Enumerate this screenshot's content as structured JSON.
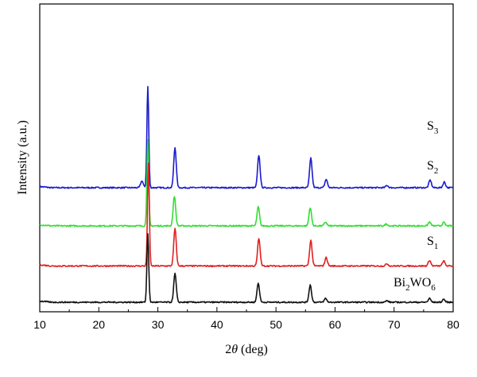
{
  "chart_data": {
    "type": "line",
    "title": "",
    "xlabel": "2θ (deg)",
    "xlabel_theta": "θ",
    "xlabel_prefix": "2",
    "xlabel_suffix": " (deg)",
    "ylabel": "Intensity (a.u.)",
    "xlim": [
      10,
      80
    ],
    "x_ticks": [
      "10",
      "20",
      "30",
      "40",
      "50",
      "60",
      "70",
      "80"
    ],
    "grid": false,
    "baseline_scale": "stacked offsets (arbitrary units)",
    "series": [
      {
        "name": "S3",
        "label_main": "S",
        "label_sub": "3",
        "color": "#1a1acc",
        "baseline": 3.0,
        "peaks": [
          [
            27.3,
            0.18
          ],
          [
            28.3,
            2.65
          ],
          [
            32.9,
            1.05
          ],
          [
            47.1,
            0.85
          ],
          [
            55.9,
            0.77
          ],
          [
            58.5,
            0.22
          ],
          [
            68.8,
            0.06
          ],
          [
            76.1,
            0.2
          ],
          [
            78.5,
            0.15
          ]
        ]
      },
      {
        "name": "S2",
        "label_main": "S",
        "label_sub": "2",
        "color": "#33dd33",
        "baseline": 2.0,
        "peaks": [
          [
            28.3,
            2.25
          ],
          [
            32.8,
            0.78
          ],
          [
            47.0,
            0.5
          ],
          [
            55.8,
            0.48
          ],
          [
            58.4,
            0.1
          ],
          [
            68.7,
            0.05
          ],
          [
            76.0,
            0.1
          ],
          [
            78.4,
            0.09
          ]
        ]
      },
      {
        "name": "S1",
        "label_main": "S",
        "label_sub": "1",
        "color": "#e02020",
        "baseline": 0.95,
        "peaks": [
          [
            28.4,
            2.7
          ],
          [
            32.9,
            0.98
          ],
          [
            47.1,
            0.72
          ],
          [
            55.9,
            0.67
          ],
          [
            58.5,
            0.22
          ],
          [
            68.8,
            0.06
          ],
          [
            76.0,
            0.15
          ],
          [
            78.4,
            0.13
          ]
        ]
      },
      {
        "name": "Bi2WO6",
        "label_main": "Bi",
        "label_sub": "2",
        "label_main2": "WO",
        "label_sub2": "6",
        "color": "#111111",
        "baseline": 0.0,
        "peaks": [
          [
            28.3,
            1.8
          ],
          [
            32.9,
            0.75
          ],
          [
            47.0,
            0.5
          ],
          [
            55.8,
            0.45
          ],
          [
            58.4,
            0.1
          ],
          [
            68.8,
            0.04
          ],
          [
            76.0,
            0.1
          ],
          [
            78.4,
            0.08
          ]
        ]
      }
    ]
  }
}
